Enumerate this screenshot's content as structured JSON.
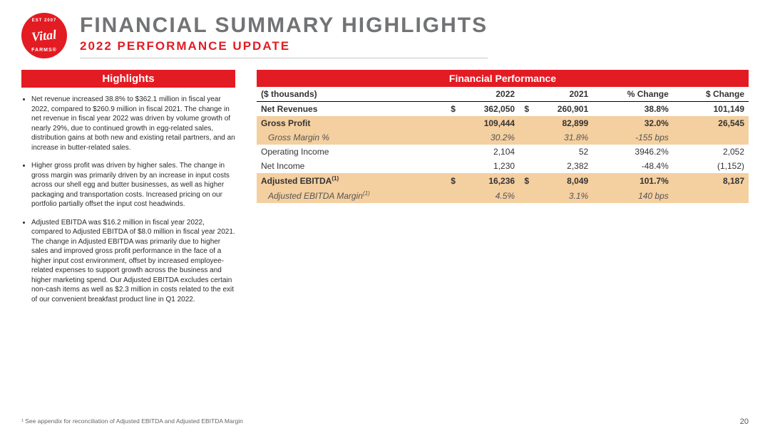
{
  "logo": {
    "est": "EST 2007",
    "brand": "Vital",
    "farms": "FARMS®"
  },
  "title": "FINANCIAL SUMMARY HIGHLIGHTS",
  "subtitle": "2022 PERFORMANCE UPDATE",
  "highlights_header": "Highlights",
  "highlights": [
    "Net revenue increased 38.8% to $362.1 million in fiscal year 2022, compared to $260.9 million in fiscal 2021. The change in net revenue in fiscal year 2022 was driven by volume growth of nearly 29%, due to continued growth in egg-related sales, distribution gains at both new and existing retail partners, and an increase in butter-related sales.",
    "Higher gross profit was driven by higher sales. The change in gross margin was primarily driven by an increase in input costs across our shell egg and butter businesses, as well as higher packaging and transportation costs. Increased pricing on our portfolio partially offset the input cost headwinds.",
    "Adjusted EBITDA was $16.2 million in fiscal year 2022, compared to Adjusted EBITDA of $8.0 million in fiscal year 2021. The change in Adjusted EBITDA was primarily due to higher sales and improved gross profit performance in the face of a higher input cost environment, offset by increased employee-related expenses to support growth across the business and higher marketing spend. Our Adjusted EBITDA excludes certain non-cash items as well as $2.3 million in costs related to the exit of our convenient breakfast product line in Q1 2022."
  ],
  "fin_header": "Financial Performance",
  "table": {
    "col_label": "($ thousands)",
    "col_2022": "2022",
    "col_2021": "2021",
    "col_pct": "% Change",
    "col_dchg": "$ Change",
    "rows": [
      {
        "label": "Net Revenues",
        "d1": "$",
        "v1": "362,050",
        "d2": "$",
        "v2": "260,901",
        "pct": "38.8%",
        "dchg": "101,149",
        "bold": true
      },
      {
        "label": "Gross Profit",
        "d1": "",
        "v1": "109,444",
        "d2": "",
        "v2": "82,899",
        "pct": "32.0%",
        "dchg": "26,545",
        "bold": true,
        "shade": true
      },
      {
        "label": "Gross Margin %",
        "d1": "",
        "v1": "30.2%",
        "d2": "",
        "v2": "31.8%",
        "pct": "-155 bps",
        "dchg": "",
        "italic": true,
        "shade": true
      },
      {
        "label": "Operating Income",
        "d1": "",
        "v1": "2,104",
        "d2": "",
        "v2": "52",
        "pct": "3946.2%",
        "dchg": "2,052"
      },
      {
        "label": "Net Income",
        "d1": "",
        "v1": "1,230",
        "d2": "",
        "v2": "2,382",
        "pct": "-48.4%",
        "dchg": "(1,152)"
      },
      {
        "label": "Adjusted EBITDA",
        "sup": "(1)",
        "d1": "$",
        "v1": "16,236",
        "d2": "$",
        "v2": "8,049",
        "pct": "101.7%",
        "dchg": "8,187",
        "bold": true,
        "shade": true
      },
      {
        "label": "Adjusted EBITDA Margin",
        "sup": "(1)",
        "d1": "",
        "v1": "4.5%",
        "d2": "",
        "v2": "3.1%",
        "pct": "140 bps",
        "dchg": "",
        "italic": true,
        "shade": true
      }
    ]
  },
  "footnote": "¹ See appendix for reconciliation of Adjusted EBITDA and Adjusted EBITDA Margin",
  "page_number": "20",
  "colors": {
    "brand_red": "#e31b23",
    "title_gray": "#727375",
    "shade_row": "#f4cfa0",
    "rule": "#c8c8c8"
  }
}
